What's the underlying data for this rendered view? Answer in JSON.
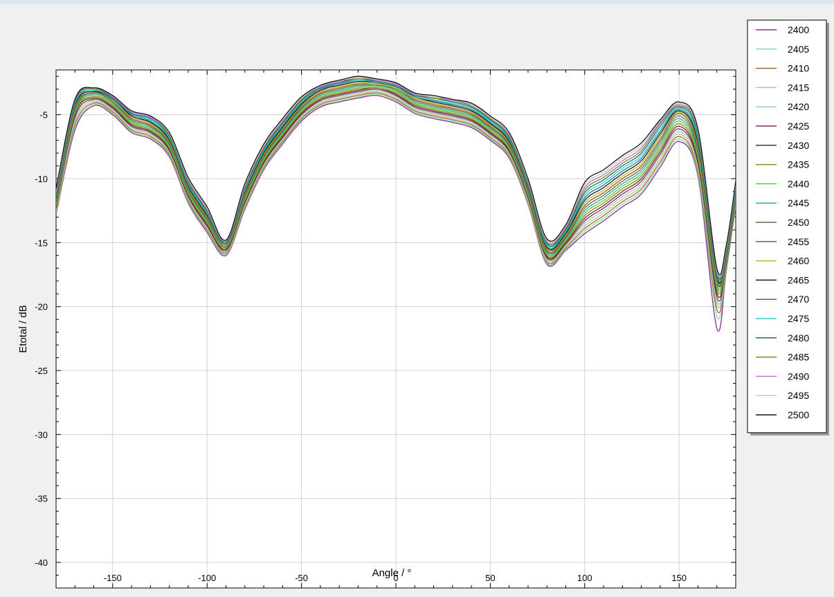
{
  "chart_data": {
    "type": "line",
    "title": "",
    "xlabel": "Angle / °",
    "ylabel": "Etotal / dB",
    "xlim": [
      -180,
      180
    ],
    "ylim": [
      -42,
      -1.5
    ],
    "x_ticks": [
      -150,
      -100,
      -50,
      0,
      50,
      100,
      150
    ],
    "y_ticks": [
      -5,
      -10,
      -15,
      -20,
      -25,
      -30,
      -35,
      -40
    ],
    "grid": true,
    "legend_position": "top-right",
    "x": [
      -180,
      -170,
      -160,
      -150,
      -140,
      -130,
      -120,
      -110,
      -100,
      -90,
      -80,
      -70,
      -60,
      -50,
      -40,
      -30,
      -20,
      -10,
      0,
      10,
      20,
      30,
      40,
      50,
      60,
      70,
      80,
      90,
      100,
      110,
      120,
      130,
      140,
      150,
      160,
      170,
      175,
      180
    ],
    "series": [
      {
        "name": "2400",
        "color": "#8a2a8f",
        "values": [
          -12.8,
          -6.2,
          -4.3,
          -5.0,
          -6.4,
          -6.9,
          -8.3,
          -11.9,
          -14.2,
          -16.0,
          -12.4,
          -9.3,
          -7.3,
          -5.5,
          -4.4,
          -4.0,
          -3.7,
          -3.5,
          -4.0,
          -4.9,
          -5.3,
          -5.6,
          -6.0,
          -7.0,
          -8.4,
          -12.0,
          -16.7,
          -15.6,
          -14.3,
          -13.3,
          -12.2,
          -11.2,
          -9.1,
          -7.1,
          -9.8,
          -21.7,
          -17.2,
          -12.2
        ]
      },
      {
        "name": "2405",
        "color": "#7fe0a8",
        "values": [
          -12.7,
          -6.0,
          -4.2,
          -4.9,
          -6.3,
          -6.8,
          -8.2,
          -11.8,
          -14.1,
          -15.9,
          -12.3,
          -9.2,
          -7.2,
          -5.4,
          -4.3,
          -3.9,
          -3.6,
          -3.4,
          -3.9,
          -4.8,
          -5.2,
          -5.5,
          -5.9,
          -6.9,
          -8.3,
          -11.9,
          -16.6,
          -15.5,
          -14.1,
          -13.1,
          -12.0,
          -11.0,
          -8.9,
          -6.9,
          -9.6,
          -20.7,
          -17.1,
          -12.1
        ]
      },
      {
        "name": "2410",
        "color": "#a0683a",
        "values": [
          -12.6,
          -5.8,
          -4.1,
          -4.8,
          -6.2,
          -6.7,
          -8.1,
          -11.7,
          -14.0,
          -15.8,
          -12.2,
          -9.1,
          -7.1,
          -5.3,
          -4.2,
          -3.8,
          -3.5,
          -3.3,
          -3.8,
          -4.7,
          -5.1,
          -5.4,
          -5.8,
          -6.8,
          -8.2,
          -11.8,
          -16.5,
          -15.4,
          -13.9,
          -12.9,
          -11.8,
          -10.8,
          -8.7,
          -6.7,
          -9.4,
          -20.2,
          -17.0,
          -12.0
        ]
      },
      {
        "name": "2415",
        "color": "#c8c080",
        "values": [
          -12.5,
          -5.6,
          -4.0,
          -4.7,
          -6.1,
          -6.6,
          -8.0,
          -11.6,
          -13.9,
          -15.7,
          -12.1,
          -9.0,
          -7.0,
          -5.2,
          -4.1,
          -3.7,
          -3.4,
          -3.2,
          -3.7,
          -4.6,
          -5.0,
          -5.3,
          -5.7,
          -6.7,
          -8.1,
          -11.7,
          -16.4,
          -15.3,
          -13.7,
          -12.7,
          -11.6,
          -10.6,
          -8.5,
          -6.5,
          -9.2,
          -19.8,
          -16.9,
          -11.9
        ]
      },
      {
        "name": "2420",
        "color": "#98d0c8",
        "values": [
          -12.4,
          -5.4,
          -3.9,
          -4.6,
          -6.0,
          -6.5,
          -7.9,
          -11.5,
          -13.8,
          -15.6,
          -12.0,
          -8.9,
          -6.9,
          -5.1,
          -4.0,
          -3.6,
          -3.3,
          -3.1,
          -3.6,
          -4.5,
          -4.9,
          -5.2,
          -5.6,
          -6.6,
          -8.0,
          -11.6,
          -16.3,
          -15.2,
          -13.5,
          -12.5,
          -11.4,
          -10.4,
          -8.3,
          -6.3,
          -9.0,
          -19.5,
          -16.8,
          -11.8
        ]
      },
      {
        "name": "2425",
        "color": "#7a2a7a",
        "values": [
          -12.3,
          -5.2,
          -3.8,
          -4.5,
          -5.9,
          -6.4,
          -7.8,
          -11.4,
          -13.7,
          -15.6,
          -11.9,
          -8.8,
          -6.8,
          -5.0,
          -3.9,
          -3.5,
          -3.2,
          -3.0,
          -3.5,
          -4.4,
          -4.8,
          -5.1,
          -5.5,
          -6.5,
          -7.9,
          -11.5,
          -16.2,
          -15.1,
          -13.3,
          -12.3,
          -11.2,
          -10.2,
          -8.1,
          -6.1,
          -8.8,
          -19.2,
          -16.7,
          -11.7
        ]
      },
      {
        "name": "2430",
        "color": "#702818",
        "values": [
          -12.2,
          -5.0,
          -3.7,
          -4.4,
          -5.8,
          -6.3,
          -7.7,
          -11.3,
          -13.6,
          -15.5,
          -11.8,
          -8.7,
          -6.7,
          -4.9,
          -3.8,
          -3.4,
          -3.1,
          -2.9,
          -3.4,
          -4.3,
          -4.7,
          -5.0,
          -5.4,
          -6.4,
          -7.8,
          -11.4,
          -16.1,
          -15.0,
          -13.1,
          -12.1,
          -11.0,
          -10.0,
          -7.9,
          -5.9,
          -8.6,
          -18.9,
          -16.6,
          -11.6
        ]
      },
      {
        "name": "2435",
        "color": "#8a8a1a",
        "values": [
          -12.1,
          -4.9,
          -3.6,
          -4.3,
          -5.7,
          -6.2,
          -7.6,
          -11.2,
          -13.5,
          -15.4,
          -11.7,
          -8.6,
          -6.6,
          -4.8,
          -3.7,
          -3.3,
          -3.0,
          -2.9,
          -3.3,
          -4.2,
          -4.6,
          -4.9,
          -5.3,
          -6.3,
          -7.7,
          -11.3,
          -16.0,
          -14.9,
          -12.9,
          -11.9,
          -10.8,
          -9.8,
          -7.7,
          -5.7,
          -8.4,
          -18.6,
          -16.5,
          -11.5
        ]
      },
      {
        "name": "2440",
        "color": "#5ac83a",
        "values": [
          -12.0,
          -4.8,
          -3.5,
          -4.2,
          -5.6,
          -6.1,
          -7.5,
          -11.1,
          -13.4,
          -15.4,
          -11.6,
          -8.5,
          -6.5,
          -4.7,
          -3.6,
          -3.2,
          -2.9,
          -2.8,
          -3.2,
          -4.1,
          -4.5,
          -4.8,
          -5.2,
          -6.2,
          -7.6,
          -11.2,
          -15.9,
          -14.8,
          -12.7,
          -11.7,
          -10.6,
          -9.6,
          -7.5,
          -5.5,
          -8.2,
          -18.4,
          -16.4,
          -11.4
        ]
      },
      {
        "name": "2445",
        "color": "#30b08a",
        "values": [
          -11.9,
          -4.7,
          -3.4,
          -4.1,
          -5.5,
          -6.0,
          -7.4,
          -11.0,
          -13.3,
          -15.3,
          -11.5,
          -8.4,
          -6.4,
          -4.6,
          -3.5,
          -3.1,
          -2.8,
          -2.7,
          -3.1,
          -4.0,
          -4.4,
          -4.7,
          -5.1,
          -6.1,
          -7.5,
          -11.1,
          -15.8,
          -14.7,
          -12.5,
          -11.5,
          -10.4,
          -9.4,
          -7.3,
          -5.3,
          -8.0,
          -18.2,
          -16.3,
          -11.3
        ]
      },
      {
        "name": "2450",
        "color": "#5a7040",
        "values": [
          -11.8,
          -4.6,
          -3.3,
          -4.0,
          -5.4,
          -5.9,
          -7.3,
          -10.9,
          -13.2,
          -15.3,
          -11.4,
          -8.3,
          -6.3,
          -4.5,
          -3.4,
          -3.0,
          -2.7,
          -2.7,
          -3.0,
          -3.9,
          -4.3,
          -4.6,
          -5.0,
          -6.0,
          -7.4,
          -11.0,
          -15.7,
          -14.6,
          -12.3,
          -11.3,
          -10.2,
          -9.2,
          -7.1,
          -5.1,
          -7.8,
          -18.0,
          -16.2,
          -11.2
        ]
      },
      {
        "name": "2455",
        "color": "#a05030",
        "values": [
          -11.7,
          -4.5,
          -3.3,
          -3.9,
          -5.3,
          -5.8,
          -7.2,
          -10.8,
          -13.1,
          -15.2,
          -11.3,
          -8.2,
          -6.2,
          -4.4,
          -3.3,
          -2.9,
          -2.6,
          -2.6,
          -2.9,
          -3.8,
          -4.2,
          -4.5,
          -4.9,
          -5.9,
          -7.3,
          -10.9,
          -15.6,
          -14.5,
          -12.1,
          -11.1,
          -10.0,
          -9.0,
          -6.9,
          -4.9,
          -7.6,
          -17.9,
          -16.1,
          -11.1
        ]
      },
      {
        "name": "2460",
        "color": "#b8b820",
        "values": [
          -11.6,
          -4.4,
          -3.2,
          -3.9,
          -5.2,
          -5.7,
          -7.1,
          -10.7,
          -13.0,
          -15.2,
          -11.2,
          -8.1,
          -6.1,
          -4.3,
          -3.2,
          -2.8,
          -2.5,
          -2.6,
          -2.9,
          -3.7,
          -4.1,
          -4.4,
          -4.8,
          -5.8,
          -7.2,
          -10.8,
          -15.5,
          -14.4,
          -11.9,
          -10.9,
          -9.8,
          -8.8,
          -6.7,
          -4.8,
          -7.4,
          -17.8,
          -16.0,
          -11.0
        ]
      },
      {
        "name": "2465",
        "color": "#101830",
        "values": [
          -11.5,
          -4.3,
          -3.2,
          -3.8,
          -5.1,
          -5.6,
          -7.0,
          -10.6,
          -12.9,
          -15.1,
          -11.1,
          -8.0,
          -6.0,
          -4.2,
          -3.1,
          -2.7,
          -2.4,
          -2.5,
          -2.8,
          -3.6,
          -4.0,
          -4.3,
          -4.7,
          -5.7,
          -7.1,
          -10.7,
          -15.4,
          -14.3,
          -11.7,
          -10.7,
          -9.6,
          -8.6,
          -6.5,
          -4.7,
          -7.2,
          -17.7,
          -15.9,
          -10.9
        ]
      },
      {
        "name": "2470",
        "color": "#2a7a7a",
        "values": [
          -11.4,
          -4.2,
          -3.1,
          -3.8,
          -5.0,
          -5.5,
          -6.9,
          -10.5,
          -12.8,
          -15.1,
          -11.0,
          -7.9,
          -5.9,
          -4.1,
          -3.0,
          -2.6,
          -2.3,
          -2.5,
          -2.8,
          -3.6,
          -3.9,
          -4.2,
          -4.6,
          -5.6,
          -7.0,
          -10.6,
          -15.3,
          -14.2,
          -11.5,
          -10.5,
          -9.4,
          -8.4,
          -6.3,
          -4.6,
          -7.0,
          -17.6,
          -15.8,
          -10.8
        ]
      },
      {
        "name": "2475",
        "color": "#30d0c8",
        "values": [
          -11.3,
          -4.1,
          -3.1,
          -3.7,
          -4.9,
          -5.4,
          -6.8,
          -10.4,
          -12.7,
          -15.0,
          -10.9,
          -7.8,
          -5.8,
          -4.0,
          -2.9,
          -2.5,
          -2.3,
          -2.4,
          -2.7,
          -3.5,
          -3.8,
          -4.1,
          -4.5,
          -5.5,
          -6.9,
          -10.5,
          -15.2,
          -14.1,
          -11.3,
          -10.3,
          -9.2,
          -8.2,
          -6.1,
          -4.5,
          -6.8,
          -17.5,
          -15.7,
          -10.7
        ]
      },
      {
        "name": "2480",
        "color": "#1a6a8a",
        "values": [
          -11.2,
          -4.0,
          -3.0,
          -3.7,
          -4.9,
          -5.3,
          -6.7,
          -10.3,
          -12.6,
          -15.0,
          -10.8,
          -7.7,
          -5.7,
          -3.9,
          -2.9,
          -2.5,
          -2.2,
          -2.4,
          -2.7,
          -3.5,
          -3.7,
          -4.0,
          -4.4,
          -5.4,
          -6.8,
          -10.4,
          -15.1,
          -14.0,
          -11.1,
          -10.1,
          -9.0,
          -8.0,
          -5.9,
          -4.4,
          -6.6,
          -17.4,
          -15.6,
          -10.6
        ]
      },
      {
        "name": "2485",
        "color": "#7a8a10",
        "values": [
          -11.1,
          -3.9,
          -3.0,
          -3.6,
          -4.8,
          -5.2,
          -6.6,
          -10.2,
          -12.5,
          -14.9,
          -10.7,
          -7.6,
          -5.6,
          -3.8,
          -2.8,
          -2.4,
          -2.2,
          -2.3,
          -2.6,
          -3.4,
          -3.7,
          -3.9,
          -4.3,
          -5.3,
          -6.7,
          -10.3,
          -15.0,
          -13.9,
          -10.9,
          -9.9,
          -8.8,
          -7.8,
          -5.7,
          -4.3,
          -6.4,
          -17.3,
          -15.5,
          -10.5
        ]
      },
      {
        "name": "2490",
        "color": "#c070d0",
        "values": [
          -11.0,
          -3.9,
          -2.9,
          -3.6,
          -4.8,
          -5.2,
          -6.5,
          -10.1,
          -12.4,
          -14.9,
          -10.6,
          -7.5,
          -5.5,
          -3.7,
          -2.8,
          -2.4,
          -2.1,
          -2.3,
          -2.6,
          -3.4,
          -3.6,
          -3.9,
          -4.2,
          -5.2,
          -6.6,
          -10.2,
          -14.9,
          -13.8,
          -10.7,
          -9.7,
          -8.6,
          -7.6,
          -5.6,
          -4.2,
          -6.3,
          -17.2,
          -15.4,
          -10.4
        ]
      },
      {
        "name": "2495",
        "color": "#c8c8c8",
        "values": [
          -10.9,
          -3.8,
          -2.9,
          -3.5,
          -4.7,
          -5.1,
          -6.5,
          -10.0,
          -12.3,
          -14.8,
          -10.5,
          -7.4,
          -5.4,
          -3.7,
          -2.7,
          -2.3,
          -2.1,
          -2.2,
          -2.5,
          -3.3,
          -3.6,
          -3.8,
          -4.2,
          -5.2,
          -6.5,
          -10.1,
          -14.8,
          -13.7,
          -10.5,
          -9.5,
          -8.4,
          -7.4,
          -5.5,
          -4.1,
          -6.2,
          -17.1,
          -15.3,
          -10.3
        ]
      },
      {
        "name": "2500",
        "color": "#101010",
        "values": [
          -10.8,
          -3.8,
          -2.9,
          -3.5,
          -4.7,
          -5.1,
          -6.4,
          -9.9,
          -12.2,
          -14.8,
          -10.4,
          -7.3,
          -5.3,
          -3.6,
          -2.7,
          -2.3,
          -2.0,
          -2.2,
          -2.5,
          -3.3,
          -3.5,
          -3.8,
          -4.1,
          -5.1,
          -6.4,
          -10.0,
          -14.7,
          -13.6,
          -10.3,
          -9.3,
          -8.2,
          -7.2,
          -5.4,
          -4.0,
          -6.1,
          -17.0,
          -15.2,
          -10.2
        ]
      }
    ]
  }
}
